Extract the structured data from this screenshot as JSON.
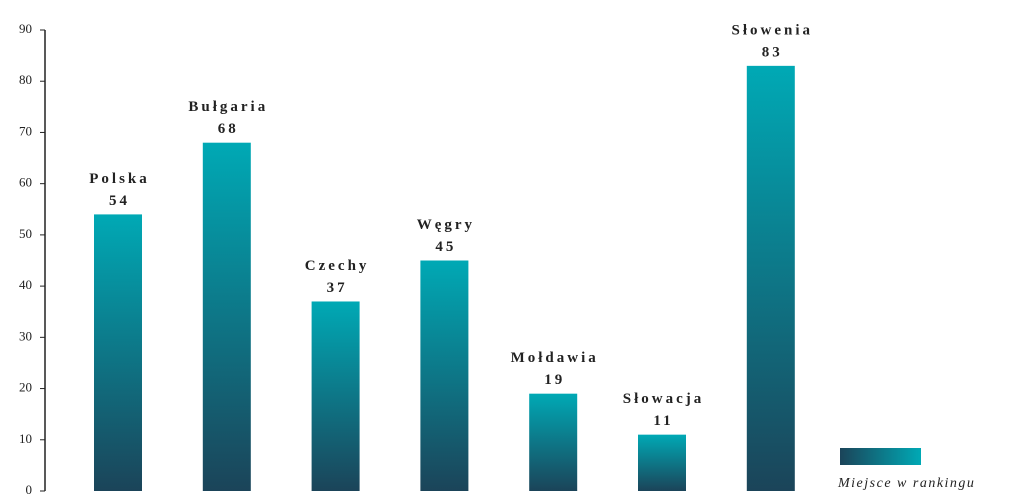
{
  "chart_data": {
    "type": "bar",
    "categories": [
      "Polska",
      "Bułgaria",
      "Czechy",
      "Węgry",
      "Mołdawia",
      "Słowacja",
      "Słowenia"
    ],
    "series": [
      {
        "name": "Miejsce w rankingu",
        "values": [
          54,
          68,
          37,
          45,
          19,
          11,
          83
        ],
        "gradient": [
          "#00a9b5",
          "#1b4459"
        ]
      }
    ],
    "ylim": [
      0,
      90
    ],
    "yticks": [
      0,
      10,
      20,
      30,
      40,
      50,
      60,
      70,
      80,
      90
    ],
    "grid": false,
    "legend": "bottom-right"
  }
}
